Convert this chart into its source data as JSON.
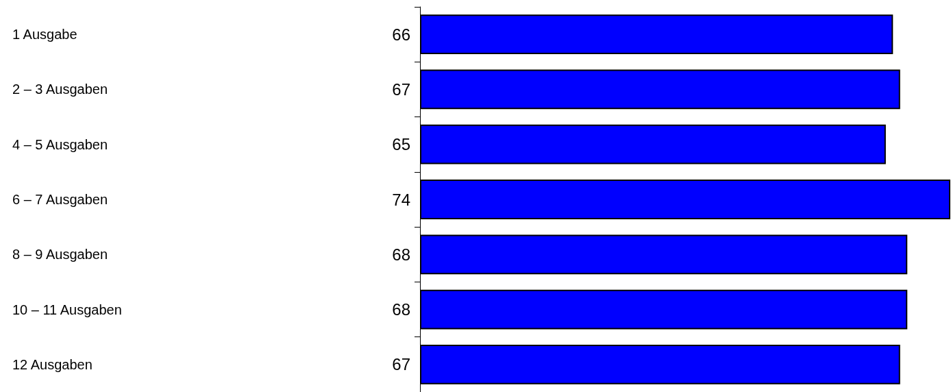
{
  "chart_data": {
    "type": "bar",
    "orientation": "horizontal",
    "categories": [
      "1 Ausgabe",
      "2 – 3 Ausgaben",
      "4 – 5 Ausgaben",
      "6 – 7 Ausgaben",
      "8 – 9 Ausgaben",
      "10 – 11 Ausgaben",
      "12 Ausgaben"
    ],
    "values": [
      66,
      67,
      65,
      74,
      68,
      68,
      67
    ],
    "color": "#0000ff",
    "data_labels": true
  }
}
